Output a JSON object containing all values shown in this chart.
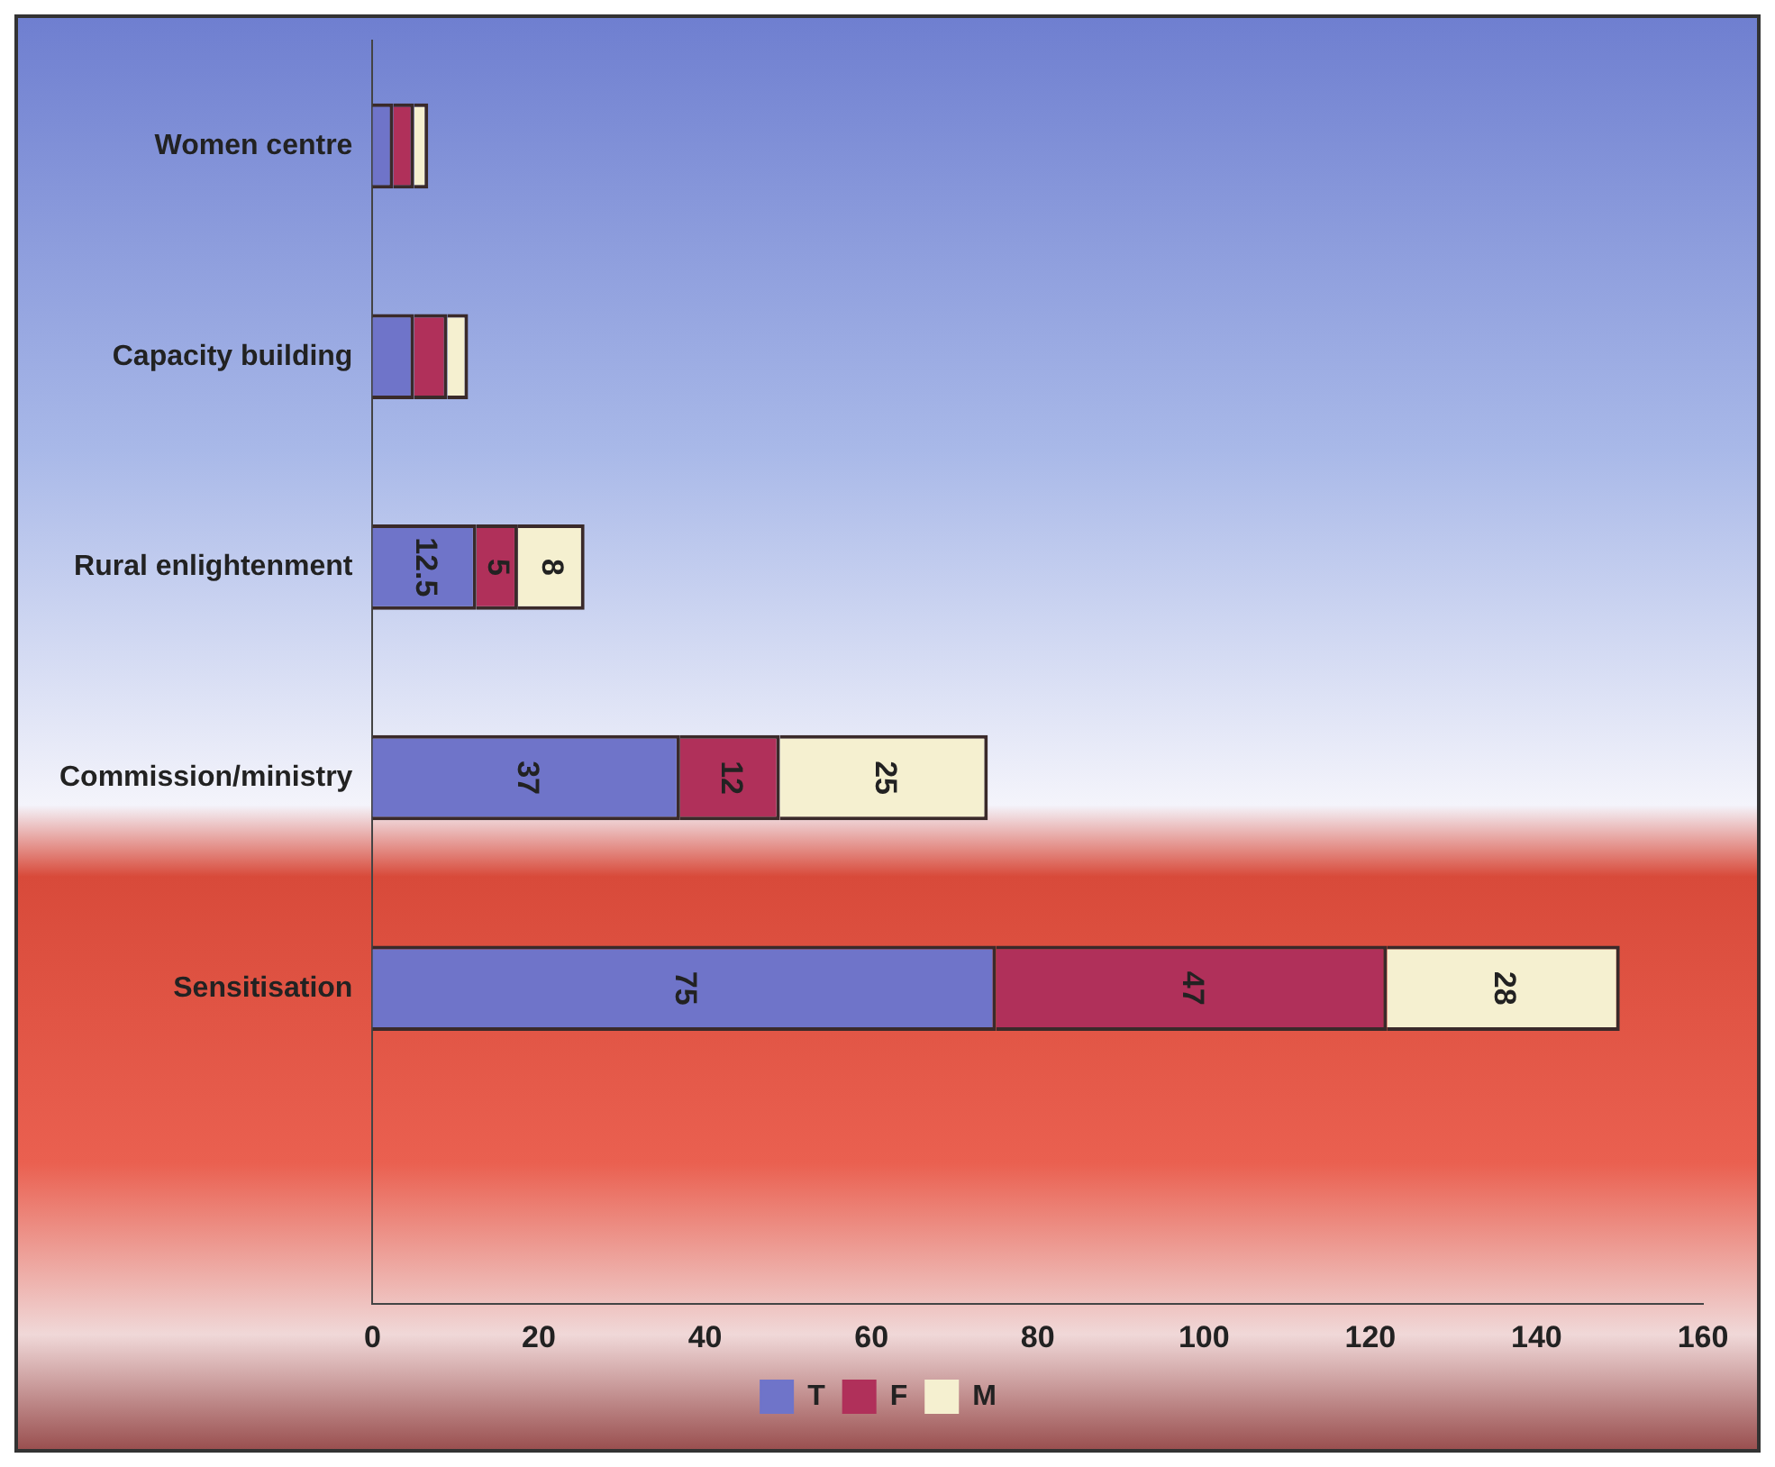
{
  "chart_data": {
    "type": "bar",
    "orientation": "horizontal",
    "stacked": true,
    "categories": [
      "Women centre",
      "Capacity building",
      "Rural enlightenment",
      "Commission/ministry",
      "Sensitisation",
      null
    ],
    "series": [
      {
        "name": "T",
        "color": "#6f74c9",
        "values": [
          2.5,
          5,
          12.5,
          37,
          75,
          null
        ],
        "value_labels": [
          null,
          null,
          "12.5",
          "37",
          "75",
          null
        ]
      },
      {
        "name": "F",
        "color": "#b0305a",
        "values": [
          2.5,
          4,
          5,
          12,
          47,
          null
        ],
        "value_labels": [
          null,
          null,
          "5",
          "12",
          "47",
          null
        ]
      },
      {
        "name": "M",
        "color": "#f5f0d0",
        "values": [
          1.7,
          2.5,
          8,
          25,
          28,
          null
        ],
        "value_labels": [
          null,
          null,
          "8",
          "25",
          "28",
          null
        ]
      }
    ],
    "xlim": [
      0,
      160
    ],
    "xticks": [
      0,
      20,
      40,
      60,
      80,
      100,
      120,
      140,
      160
    ],
    "grid": false,
    "legend": "bottom"
  }
}
